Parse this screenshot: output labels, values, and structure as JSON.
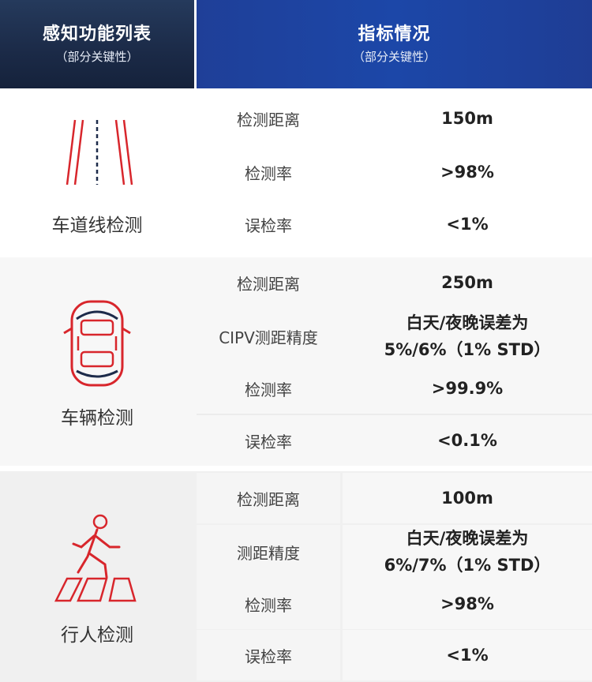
{
  "header": {
    "left_title": "感知功能列表",
    "left_sub": "（部分关键性）",
    "right_title": "指标情况",
    "right_sub": "（部分关键性）"
  },
  "colors": {
    "icon_red": "#d8262c",
    "header_left": "#1b2a47",
    "header_right": "#1f43a0"
  },
  "sections": [
    {
      "label": "车道线检测",
      "icon": "lane-lines-icon",
      "rows": [
        {
          "name": "检测距离",
          "value": "150m"
        },
        {
          "name": "检测率",
          "value": ">98%"
        },
        {
          "name": "误检率",
          "value": "<1%"
        }
      ]
    },
    {
      "label": "车辆检测",
      "icon": "car-top-view-icon",
      "rows": [
        {
          "name": "检测距离",
          "value": "250m"
        },
        {
          "name": "CIPV测距精度",
          "value_line1": "白天/夜晚误差为",
          "value_line2": "5%/6%（1% STD）"
        },
        {
          "name": "检测率",
          "value": ">99.9%"
        },
        {
          "name": "误检率",
          "value": "<0.1%"
        }
      ]
    },
    {
      "label": "行人检测",
      "icon": "pedestrian-crosswalk-icon",
      "rows": [
        {
          "name": "检测距离",
          "value": "100m"
        },
        {
          "name": "测距精度",
          "value_line1": "白天/夜晚误差为",
          "value_line2": "6%/7%（1% STD）"
        },
        {
          "name": "检测率",
          "value": ">98%"
        },
        {
          "name": "误检率",
          "value": "<1%"
        }
      ]
    }
  ]
}
